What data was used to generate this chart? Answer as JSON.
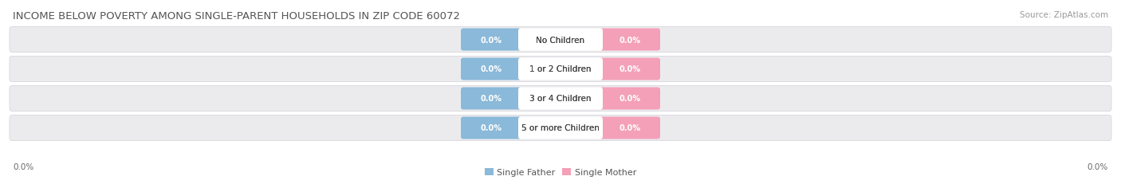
{
  "title": "INCOME BELOW POVERTY AMONG SINGLE-PARENT HOUSEHOLDS IN ZIP CODE 60072",
  "source_text": "Source: ZipAtlas.com",
  "categories": [
    "No Children",
    "1 or 2 Children",
    "3 or 4 Children",
    "5 or more Children"
  ],
  "single_father_values": [
    0.0,
    0.0,
    0.0,
    0.0
  ],
  "single_mother_values": [
    0.0,
    0.0,
    0.0,
    0.0
  ],
  "father_color": "#8ab9d9",
  "mother_color": "#f4a0b8",
  "track_color": "#ebebee",
  "track_border_color": "#d8d8de",
  "label_bg_color": "#ffffff",
  "title_color": "#555555",
  "source_color": "#999999",
  "axis_label_color": "#666666",
  "legend_text_color": "#555555",
  "title_fontsize": 9.5,
  "source_fontsize": 7.5,
  "badge_fontsize": 7,
  "cat_fontsize": 7.5,
  "axis_label_fontsize": 7.5,
  "legend_fontsize": 8,
  "x_axis_label_left": "0.0%",
  "x_axis_label_right": "0.0%",
  "background_color": "#ffffff",
  "fig_width": 14.06,
  "fig_height": 2.32
}
